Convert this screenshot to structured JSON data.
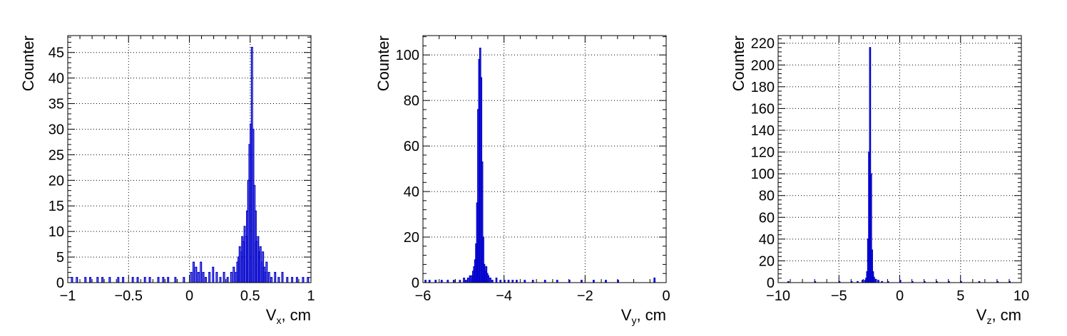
{
  "chart_data": [
    {
      "type": "bar",
      "style": "step-histogram",
      "xlabel": {
        "main": "V",
        "sub": "x",
        "rest": ", cm"
      },
      "ylabel": "Counter",
      "xlim": [
        -1,
        1
      ],
      "ylim": [
        0,
        48.3
      ],
      "grid": true,
      "line_color": "#0000cc",
      "x_ticks": [
        -1,
        -0.5,
        0,
        0.5,
        1
      ],
      "x_tick_labels": [
        "−1",
        "−0.5",
        "0",
        "0.5",
        "1"
      ],
      "y_ticks": [
        0,
        5,
        10,
        15,
        20,
        25,
        30,
        35,
        40,
        45
      ],
      "y_tick_labels": [
        "0",
        "5",
        "10",
        "15",
        "20",
        "25",
        "30",
        "35",
        "40",
        "45"
      ],
      "bin_width": 0.01,
      "bins": [
        [
          -0.97,
          1
        ],
        [
          -0.93,
          1
        ],
        [
          -0.86,
          1
        ],
        [
          -0.82,
          1
        ],
        [
          -0.76,
          1
        ],
        [
          -0.72,
          1
        ],
        [
          -0.66,
          1
        ],
        [
          -0.59,
          1
        ],
        [
          -0.55,
          1
        ],
        [
          -0.47,
          1
        ],
        [
          -0.43,
          1
        ],
        [
          -0.37,
          1
        ],
        [
          -0.33,
          1
        ],
        [
          -0.26,
          1
        ],
        [
          -0.22,
          1
        ],
        [
          -0.18,
          1
        ],
        [
          -0.12,
          1
        ],
        [
          -0.05,
          1
        ],
        [
          0.01,
          2
        ],
        [
          0.03,
          4
        ],
        [
          0.05,
          3
        ],
        [
          0.07,
          2
        ],
        [
          0.09,
          4
        ],
        [
          0.11,
          2
        ],
        [
          0.13,
          1
        ],
        [
          0.16,
          2
        ],
        [
          0.19,
          3
        ],
        [
          0.22,
          2
        ],
        [
          0.25,
          1
        ],
        [
          0.28,
          2
        ],
        [
          0.31,
          1
        ],
        [
          0.34,
          2
        ],
        [
          0.36,
          3
        ],
        [
          0.38,
          2
        ],
        [
          0.39,
          4
        ],
        [
          0.4,
          5
        ],
        [
          0.41,
          7
        ],
        [
          0.42,
          6
        ],
        [
          0.43,
          9
        ],
        [
          0.44,
          8
        ],
        [
          0.45,
          11
        ],
        [
          0.46,
          9
        ],
        [
          0.47,
          14
        ],
        [
          0.48,
          20
        ],
        [
          0.49,
          27
        ],
        [
          0.5,
          31
        ],
        [
          0.51,
          46
        ],
        [
          0.52,
          30
        ],
        [
          0.53,
          19
        ],
        [
          0.54,
          14
        ],
        [
          0.55,
          8
        ],
        [
          0.56,
          9
        ],
        [
          0.57,
          6
        ],
        [
          0.58,
          7
        ],
        [
          0.59,
          4
        ],
        [
          0.6,
          6
        ],
        [
          0.61,
          3
        ],
        [
          0.62,
          2
        ],
        [
          0.63,
          4
        ],
        [
          0.65,
          2
        ],
        [
          0.67,
          1
        ],
        [
          0.7,
          2
        ],
        [
          0.73,
          1
        ],
        [
          0.76,
          2
        ],
        [
          0.8,
          1
        ],
        [
          0.84,
          1
        ],
        [
          0.88,
          1
        ],
        [
          0.93,
          1
        ],
        [
          0.97,
          1
        ]
      ]
    },
    {
      "type": "bar",
      "style": "step-histogram",
      "xlabel": {
        "main": "V",
        "sub": "y",
        "rest": ", cm"
      },
      "ylabel": "Counter",
      "xlim": [
        -6,
        0
      ],
      "ylim": [
        0,
        108.5
      ],
      "grid": true,
      "line_color": "#0000cc",
      "x_ticks": [
        -6,
        -4,
        -2,
        0
      ],
      "x_tick_labels": [
        "−6",
        "−4",
        "−2",
        "0"
      ],
      "y_ticks": [
        0,
        20,
        40,
        60,
        80,
        100
      ],
      "y_tick_labels": [
        "0",
        "20",
        "40",
        "60",
        "80",
        "100"
      ],
      "bin_width": 0.025,
      "bins": [
        [
          -5.95,
          1
        ],
        [
          -5.85,
          1
        ],
        [
          -5.7,
          1
        ],
        [
          -5.55,
          1
        ],
        [
          -5.4,
          1
        ],
        [
          -5.25,
          1
        ],
        [
          -5.1,
          1
        ],
        [
          -5.0,
          2
        ],
        [
          -4.95,
          1
        ],
        [
          -4.9,
          2
        ],
        [
          -4.85,
          3
        ],
        [
          -4.8,
          3
        ],
        [
          -4.775,
          5
        ],
        [
          -4.75,
          7
        ],
        [
          -4.725,
          10
        ],
        [
          -4.7,
          17
        ],
        [
          -4.675,
          35
        ],
        [
          -4.65,
          76
        ],
        [
          -4.625,
          98
        ],
        [
          -4.6,
          103
        ],
        [
          -4.575,
          90
        ],
        [
          -4.55,
          53
        ],
        [
          -4.525,
          20
        ],
        [
          -4.5,
          8
        ],
        [
          -4.475,
          5
        ],
        [
          -4.45,
          7
        ],
        [
          -4.425,
          4
        ],
        [
          -4.4,
          3
        ],
        [
          -4.35,
          2
        ],
        [
          -4.3,
          1
        ],
        [
          -4.2,
          2
        ],
        [
          -4.1,
          1
        ],
        [
          -4.0,
          1
        ],
        [
          -3.9,
          1
        ],
        [
          -3.8,
          1
        ],
        [
          -3.7,
          1
        ],
        [
          -3.5,
          1
        ],
        [
          -3.3,
          1
        ],
        [
          -3.0,
          1
        ],
        [
          -2.7,
          1
        ],
        [
          -2.4,
          1
        ],
        [
          -2.1,
          1
        ],
        [
          -1.8,
          1
        ],
        [
          -1.5,
          1
        ],
        [
          -1.2,
          1
        ],
        [
          -0.3,
          2
        ]
      ]
    },
    {
      "type": "bar",
      "style": "step-histogram",
      "xlabel": {
        "main": "V",
        "sub": "z",
        "rest": ", cm"
      },
      "ylabel": "Counter",
      "xlim": [
        -10,
        10
      ],
      "ylim": [
        0,
        227
      ],
      "grid": true,
      "line_color": "#0000cc",
      "x_ticks": [
        -10,
        -5,
        0,
        5,
        10
      ],
      "x_tick_labels": [
        "−10",
        "−5",
        "0",
        "5",
        "10"
      ],
      "y_ticks": [
        0,
        20,
        40,
        60,
        80,
        100,
        120,
        140,
        160,
        180,
        200,
        220
      ],
      "y_tick_labels": [
        "0",
        "20",
        "40",
        "60",
        "80",
        "100",
        "120",
        "140",
        "160",
        "180",
        "200",
        "220"
      ],
      "bin_width": 0.08,
      "bins": [
        [
          -9.2,
          1
        ],
        [
          -7.0,
          1
        ],
        [
          -5.0,
          1
        ],
        [
          -4.0,
          1
        ],
        [
          -3.5,
          1
        ],
        [
          -3.1,
          2
        ],
        [
          -2.9,
          2
        ],
        [
          -2.8,
          4
        ],
        [
          -2.72,
          10
        ],
        [
          -2.64,
          40
        ],
        [
          -2.56,
          120
        ],
        [
          -2.48,
          216
        ],
        [
          -2.4,
          100
        ],
        [
          -2.32,
          30
        ],
        [
          -2.24,
          10
        ],
        [
          -2.16,
          5
        ],
        [
          -2.0,
          3
        ],
        [
          -1.8,
          2
        ],
        [
          -1.5,
          1
        ],
        [
          -1.0,
          1
        ],
        [
          0.0,
          2
        ],
        [
          1.0,
          1
        ],
        [
          2.0,
          1
        ],
        [
          3.0,
          1
        ],
        [
          4.0,
          1
        ],
        [
          5.0,
          1
        ],
        [
          6.5,
          1
        ],
        [
          8.0,
          1
        ],
        [
          9.0,
          1
        ]
      ]
    }
  ]
}
